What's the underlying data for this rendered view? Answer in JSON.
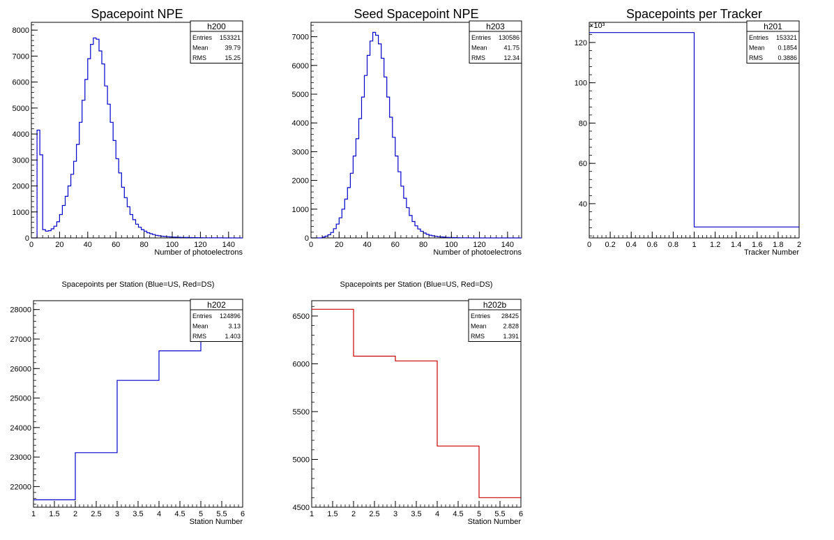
{
  "chart_data": [
    {
      "id": "h200",
      "type": "histogram",
      "title": "Spacepoint NPE",
      "xlabel": "Number of photoelectrons",
      "ylabel": "",
      "xlim": [
        0,
        150
      ],
      "ylim": [
        0,
        8300
      ],
      "xticks": [
        0,
        20,
        40,
        60,
        80,
        100,
        120,
        140
      ],
      "yticks": [
        0,
        1000,
        2000,
        3000,
        4000,
        5000,
        6000,
        7000,
        8000
      ],
      "color": "#0000cc",
      "stats": {
        "name": "h200",
        "rows": [
          [
            "Entries",
            "153321"
          ],
          [
            "Mean",
            "39.79"
          ],
          [
            "RMS",
            "15.25"
          ]
        ]
      },
      "bin_width": 2,
      "bin_start": 0,
      "values": [
        0,
        0,
        4150,
        3200,
        320,
        260,
        280,
        350,
        450,
        620,
        900,
        1250,
        1600,
        2000,
        2450,
        2950,
        3600,
        4450,
        5300,
        6100,
        6900,
        7450,
        7700,
        7650,
        7200,
        6700,
        5850,
        5150,
        4450,
        3750,
        3050,
        2500,
        1950,
        1550,
        1200,
        900,
        700,
        530,
        410,
        320,
        260,
        200,
        160,
        130,
        100,
        80,
        65,
        55,
        45,
        38,
        32,
        28,
        24,
        20,
        17,
        15,
        13,
        11,
        10,
        8,
        7,
        6,
        5,
        4,
        3,
        3,
        2,
        2,
        1,
        1,
        0,
        0,
        0,
        0,
        0
      ]
    },
    {
      "id": "h203",
      "type": "histogram",
      "title": "Seed Spacepoint NPE",
      "xlabel": "Number of photoelectrons",
      "ylabel": "",
      "xlim": [
        0,
        150
      ],
      "ylim": [
        0,
        7500
      ],
      "xticks": [
        0,
        20,
        40,
        60,
        80,
        100,
        120,
        140
      ],
      "yticks": [
        0,
        1000,
        2000,
        3000,
        4000,
        5000,
        6000,
        7000
      ],
      "color": "#0000cc",
      "stats": {
        "name": "h203",
        "rows": [
          [
            "Entries",
            "130586"
          ],
          [
            "Mean",
            "41.75"
          ],
          [
            "RMS",
            "12.34"
          ]
        ]
      },
      "bin_width": 2,
      "bin_start": 0,
      "values": [
        0,
        0,
        0,
        0,
        30,
        60,
        110,
        190,
        320,
        480,
        700,
        1000,
        1350,
        1750,
        2250,
        2850,
        3450,
        4150,
        4900,
        5650,
        6350,
        6850,
        7150,
        7050,
        6750,
        6250,
        5600,
        4900,
        4200,
        3500,
        2850,
        2300,
        1800,
        1380,
        1050,
        780,
        570,
        420,
        310,
        230,
        170,
        125,
        95,
        72,
        55,
        42,
        33,
        26,
        20,
        15,
        12,
        9,
        7,
        5,
        4,
        3,
        2,
        1,
        1,
        0,
        0,
        0,
        0,
        0,
        0,
        0,
        0,
        0,
        0,
        0,
        0,
        0,
        0,
        0,
        0
      ]
    },
    {
      "id": "h201",
      "type": "histogram",
      "title": "Spacepoints per Tracker",
      "xlabel": "Tracker Number",
      "ylabel": "",
      "multiplier": "×10³",
      "xlim": [
        0,
        2
      ],
      "ylim": [
        23000,
        130000
      ],
      "xticks": [
        "0",
        "0.2",
        "0.4",
        "0.6",
        "0.8",
        "1",
        "1.2",
        "1.4",
        "1.6",
        "1.8",
        "2"
      ],
      "yticks": [
        40000,
        60000,
        80000,
        100000,
        120000
      ],
      "ytick_labels": [
        "40",
        "60",
        "80",
        "100",
        "120"
      ],
      "color": "#0000cc",
      "stats": {
        "name": "h201",
        "rows": [
          [
            "Entries",
            "153321"
          ],
          [
            "Mean",
            "0.1854"
          ],
          [
            "RMS",
            "0.3886"
          ]
        ]
      },
      "bin_width": 1,
      "bin_start": 0,
      "values": [
        124896,
        28425
      ]
    },
    {
      "id": "h202",
      "type": "histogram",
      "title": "Spacepoints per Station (Blue=US, Red=DS)",
      "xlabel": "Station Number",
      "ylabel": "",
      "xlim": [
        1,
        6
      ],
      "ylim": [
        21300,
        28300
      ],
      "xticks": [
        "1",
        "1.5",
        "2",
        "2.5",
        "3",
        "3.5",
        "4",
        "4.5",
        "5",
        "5.5",
        "6"
      ],
      "yticks": [
        22000,
        23000,
        24000,
        25000,
        26000,
        27000,
        28000
      ],
      "color": "#0000cc",
      "stats": {
        "name": "h202",
        "rows": [
          [
            "Entries",
            "124896"
          ],
          [
            "Mean",
            "3.13"
          ],
          [
            "RMS",
            "1.403"
          ]
        ]
      },
      "bin_width": 1,
      "bin_start": 1,
      "values": [
        21550,
        23150,
        25600,
        26600,
        27950
      ]
    },
    {
      "id": "h202b",
      "type": "histogram",
      "title": "Spacepoints per Station (Blue=US, Red=DS)",
      "xlabel": "Station Number",
      "ylabel": "",
      "xlim": [
        1,
        6
      ],
      "ylim": [
        4500,
        6660
      ],
      "xticks": [
        "1",
        "1.5",
        "2",
        "2.5",
        "3",
        "3.5",
        "4",
        "4.5",
        "5",
        "5.5",
        "6"
      ],
      "yticks": [
        4500,
        5000,
        5500,
        6000,
        6500
      ],
      "color": "#cc0000",
      "stats": {
        "name": "h202b",
        "rows": [
          [
            "Entries",
            "28425"
          ],
          [
            "Mean",
            "2.828"
          ],
          [
            "RMS",
            "1.391"
          ]
        ]
      },
      "bin_width": 1,
      "bin_start": 1,
      "values": [
        6570,
        6080,
        6030,
        5140,
        4600
      ]
    }
  ]
}
